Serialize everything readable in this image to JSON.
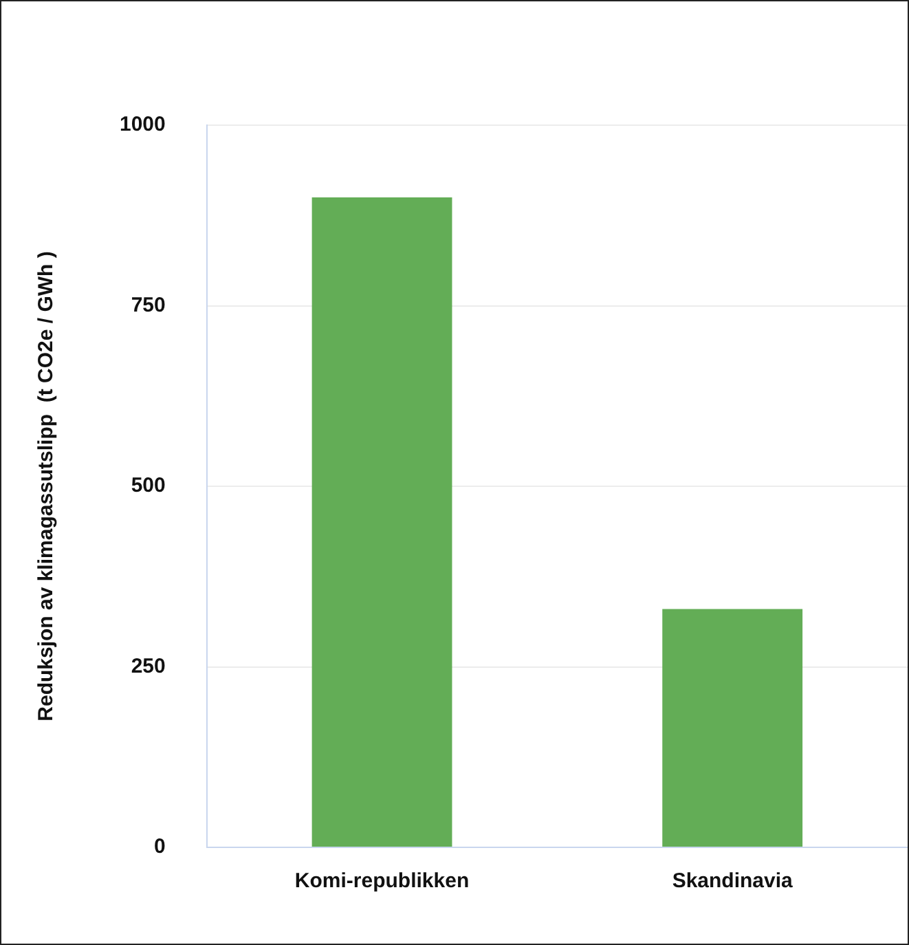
{
  "chart_data": {
    "type": "bar",
    "ylabel": "Reduksjon av klimagassutslipp  (t CO2e / GWh )",
    "categories": [
      "Komi-republikken",
      "Skandinavia"
    ],
    "values": [
      900,
      330
    ],
    "color": "#63ad56",
    "ylim": [
      0,
      1000
    ],
    "yticks": [
      0,
      250,
      500,
      750,
      1000
    ],
    "grid": "y"
  }
}
